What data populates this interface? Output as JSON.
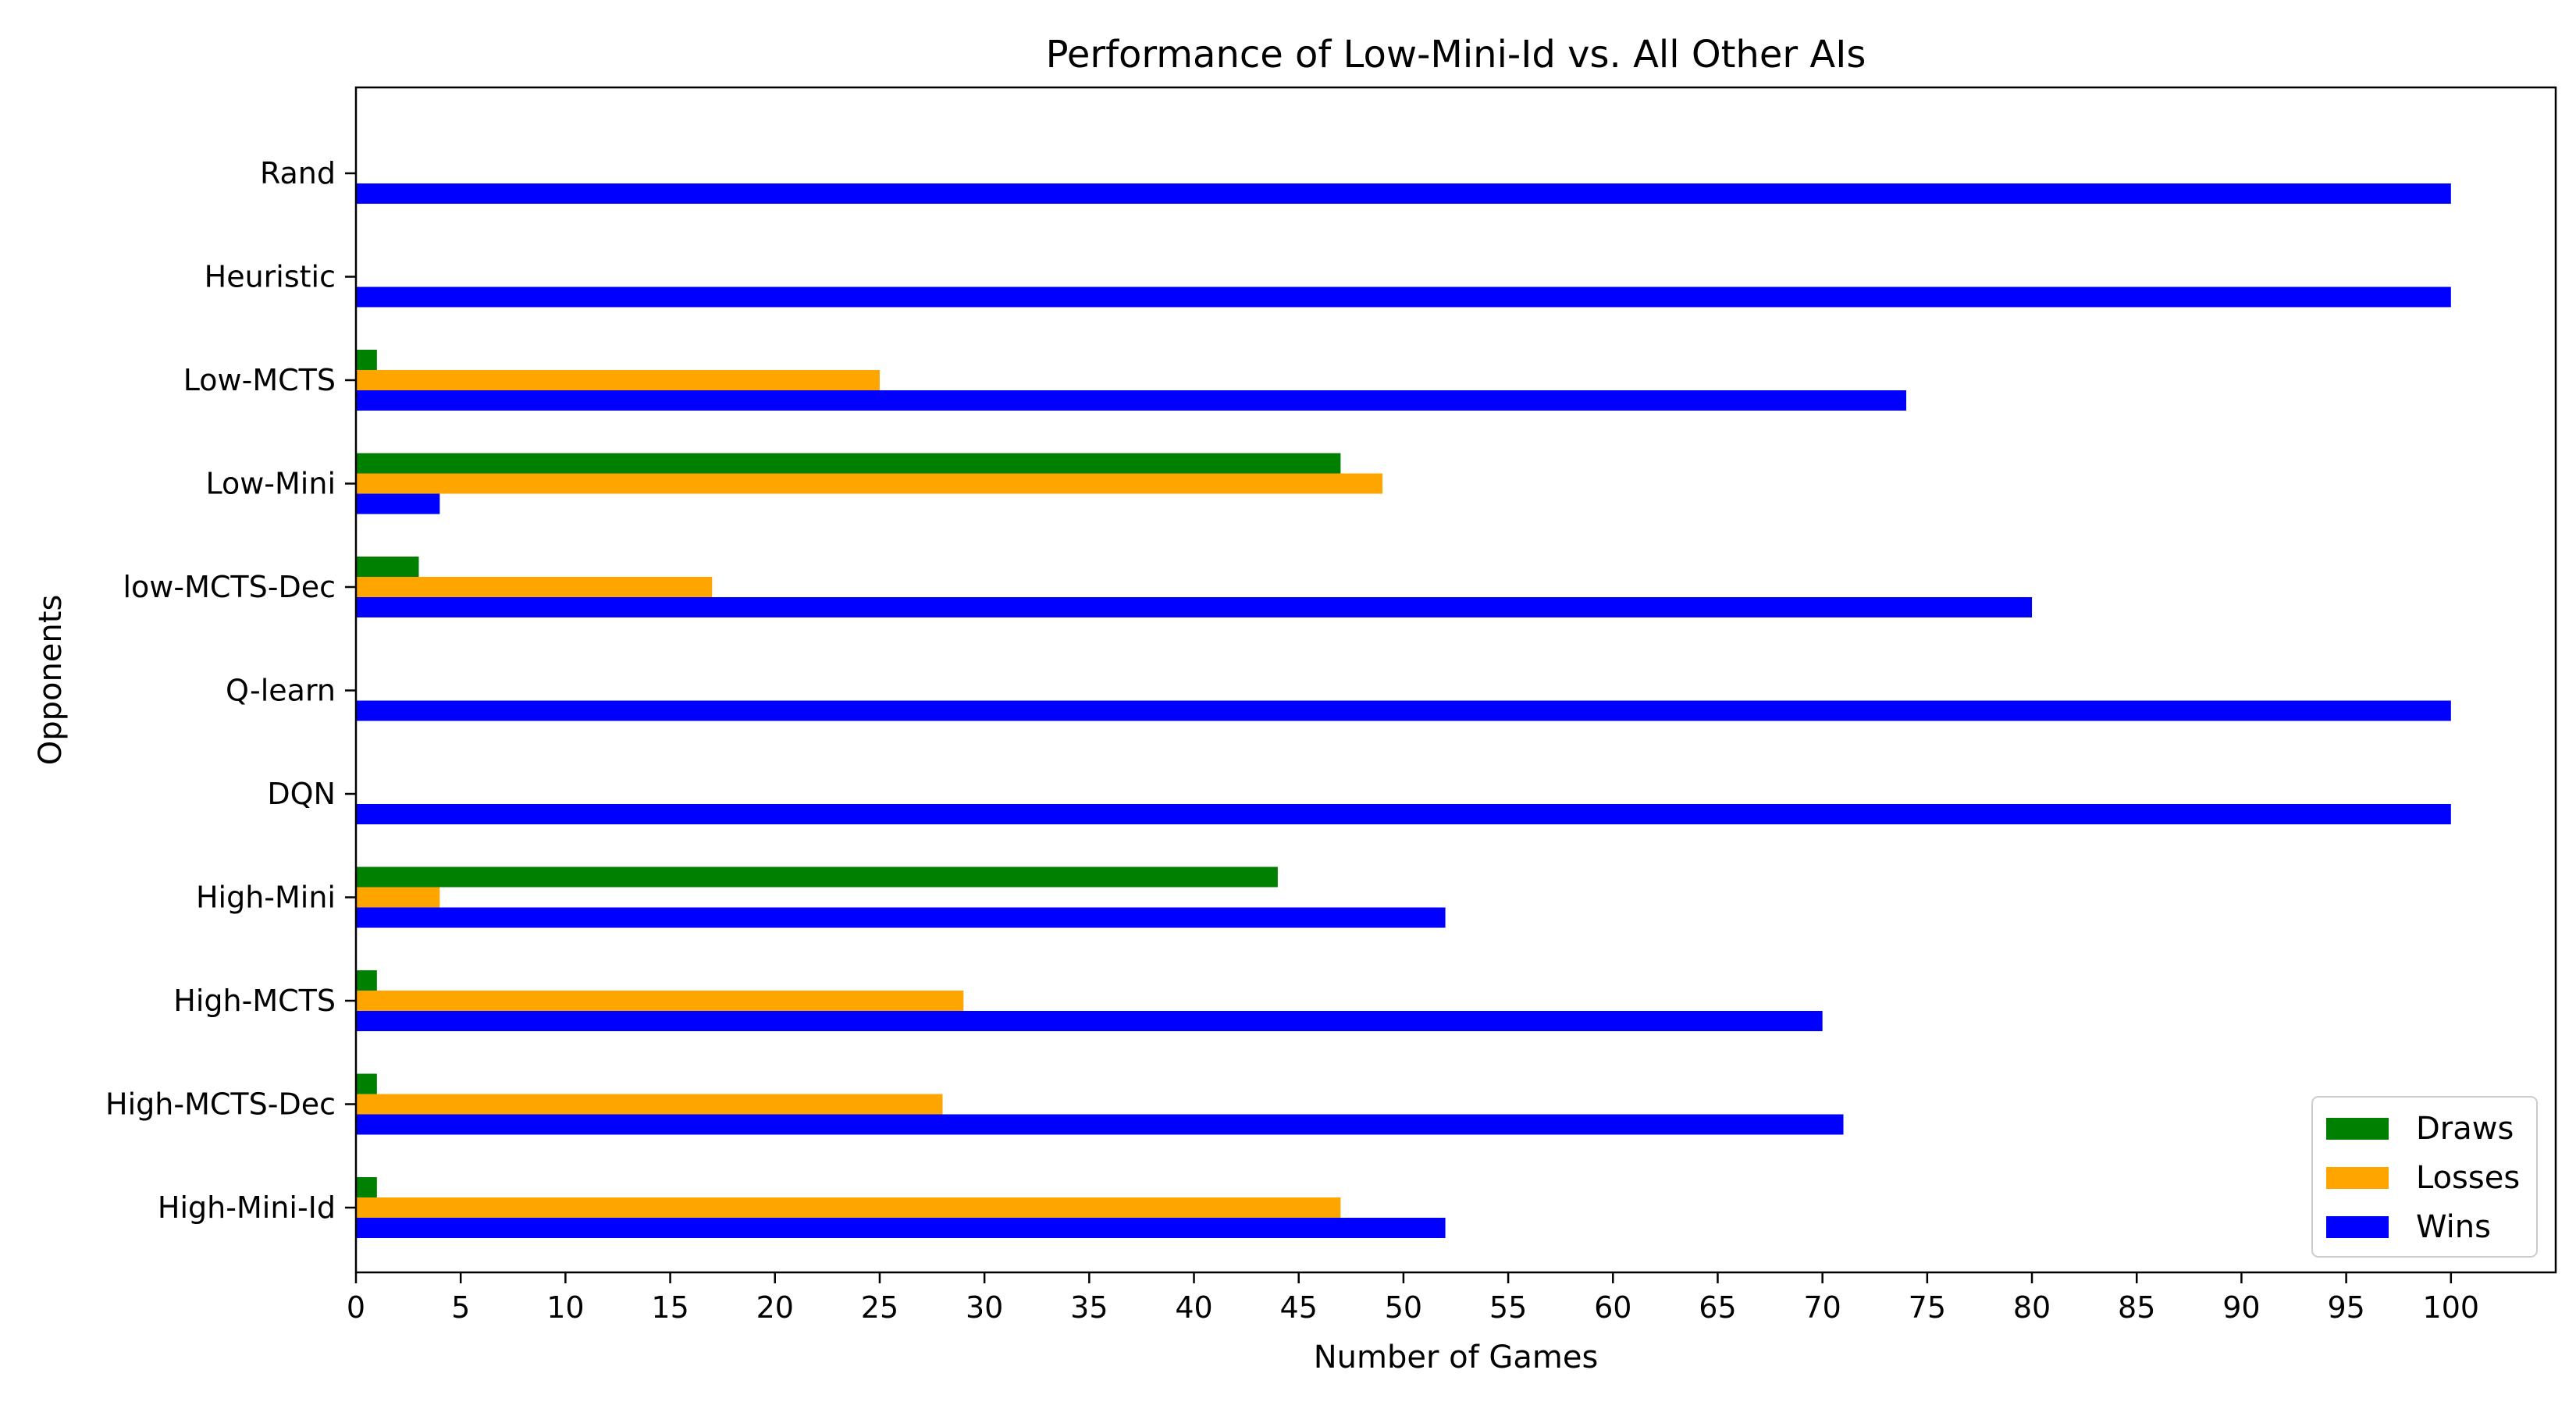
{
  "chart_data": {
    "type": "bar",
    "orientation": "horizontal",
    "title": "Performance of Low-Mini-Id vs. All Other AIs",
    "xlabel": "Number of Games",
    "ylabel": "Opponents",
    "xlim": [
      0,
      105
    ],
    "xticks": [
      0,
      5,
      10,
      15,
      20,
      25,
      30,
      35,
      40,
      45,
      50,
      55,
      60,
      65,
      70,
      75,
      80,
      85,
      90,
      95,
      100
    ],
    "grid": false,
    "legend_position": "bottom-right",
    "categories": [
      "Rand",
      "Heuristic",
      "Low-MCTS",
      "Low-Mini",
      "low-MCTS-Dec",
      "Q-learn",
      "DQN",
      "High-Mini",
      "High-MCTS",
      "High-MCTS-Dec",
      "High-Mini-Id"
    ],
    "series": [
      {
        "name": "Draws",
        "color": "#008000",
        "values": [
          0,
          0,
          1,
          47,
          3,
          0,
          0,
          44,
          1,
          1,
          1
        ]
      },
      {
        "name": "Losses",
        "color": "#FFA500",
        "values": [
          0,
          0,
          25,
          49,
          17,
          0,
          0,
          4,
          29,
          28,
          47
        ]
      },
      {
        "name": "Wins",
        "color": "#0000FF",
        "values": [
          100,
          100,
          74,
          4,
          80,
          100,
          100,
          52,
          70,
          71,
          52
        ]
      }
    ]
  }
}
